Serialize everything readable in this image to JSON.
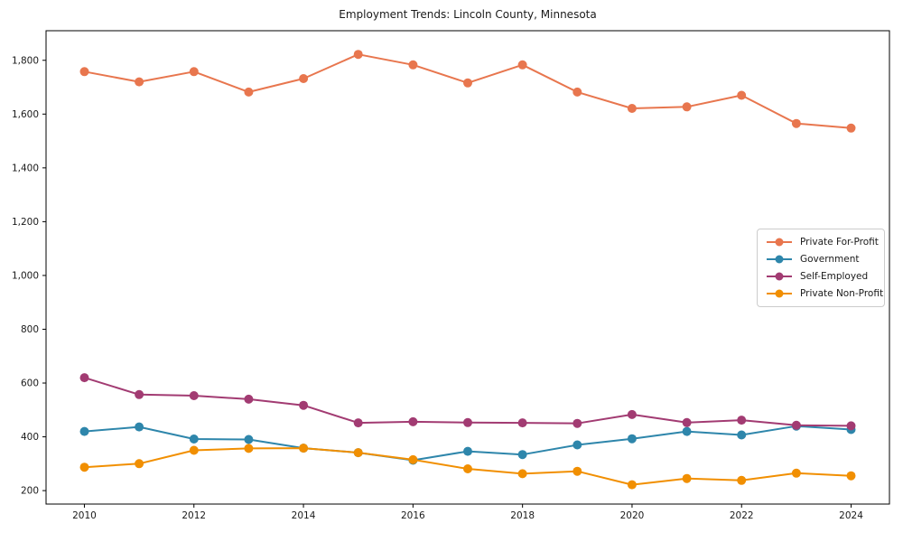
{
  "page": {
    "background": "#ffffff"
  },
  "chart_data": {
    "type": "line",
    "title": "Employment Trends: Lincoln County, Minnesota",
    "xlabel": "",
    "ylabel": "",
    "x": [
      2010,
      2011,
      2012,
      2013,
      2014,
      2015,
      2016,
      2017,
      2018,
      2019,
      2020,
      2021,
      2022,
      2023,
      2024
    ],
    "series": [
      {
        "name": "Private For-Profit",
        "color": "#E8764E",
        "values": [
          1758,
          1720,
          1758,
          1682,
          1732,
          1822,
          1783,
          1716,
          1783,
          1682,
          1621,
          1627,
          1670,
          1565,
          1548
        ]
      },
      {
        "name": "Government",
        "color": "#2E86AB",
        "values": [
          420,
          437,
          392,
          390,
          358,
          341,
          313,
          346,
          334,
          370,
          393,
          420,
          407,
          440,
          427
        ]
      },
      {
        "name": "Self-Employed",
        "color": "#A23B72",
        "values": [
          620,
          557,
          553,
          540,
          517,
          452,
          456,
          453,
          452,
          450,
          483,
          453,
          462,
          443,
          441
        ]
      },
      {
        "name": "Private Non-Profit",
        "color": "#F18F01",
        "values": [
          287,
          300,
          350,
          357,
          358,
          341,
          315,
          281,
          263,
          272,
          222,
          245,
          238,
          265,
          255
        ]
      }
    ],
    "xlim": [
      2009.3,
      2024.7
    ],
    "ylim": [
      150,
      1910
    ],
    "x_ticks": [
      {
        "value": 2010,
        "label": "2010"
      },
      {
        "value": 2012,
        "label": "2012"
      },
      {
        "value": 2014,
        "label": "2014"
      },
      {
        "value": 2016,
        "label": "2016"
      },
      {
        "value": 2018,
        "label": "2018"
      },
      {
        "value": 2020,
        "label": "2020"
      },
      {
        "value": 2022,
        "label": "2022"
      },
      {
        "value": 2024,
        "label": "2024"
      }
    ],
    "y_ticks": [
      {
        "value": 200,
        "label": "200"
      },
      {
        "value": 400,
        "label": "400"
      },
      {
        "value": 600,
        "label": "600"
      },
      {
        "value": 800,
        "label": "800"
      },
      {
        "value": 1000,
        "label": "1,000"
      },
      {
        "value": 1200,
        "label": "1,200"
      },
      {
        "value": 1400,
        "label": "1,400"
      },
      {
        "value": 1600,
        "label": "1,600"
      },
      {
        "value": 1800,
        "label": "1,800"
      }
    ],
    "grid": false,
    "legend_position": "center-right",
    "axis_color": "#000000",
    "tick_label_color": "#1a1a1a"
  }
}
